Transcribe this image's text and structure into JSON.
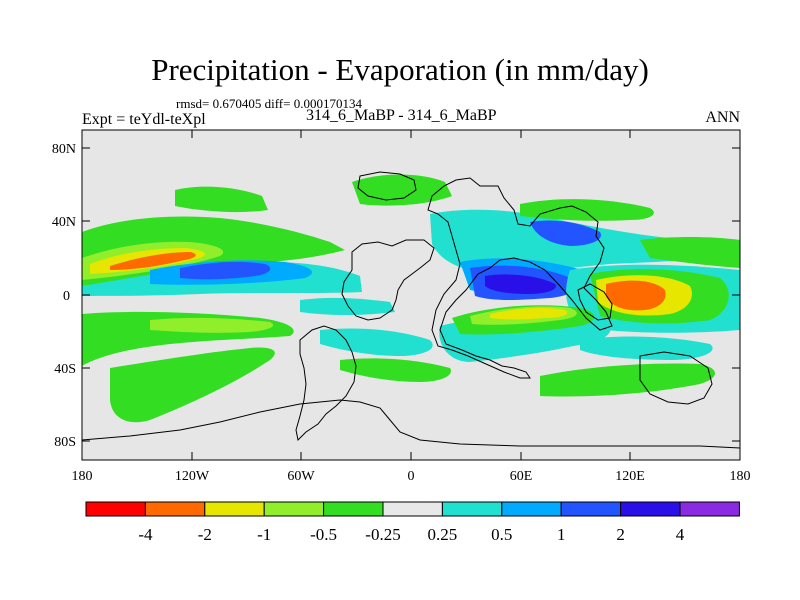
{
  "header": {
    "title": "Precipitation - Evaporation (in mm/day)",
    "stats": "rmsd= 0.670405 diff= 0.000170134",
    "experiment": "Expt = teYdl-teXpl",
    "case": "314_6_MaBP - 314_6_MaBP",
    "season": "ANN"
  },
  "axes": {
    "lat_ticks": [
      "80N",
      "40N",
      "0",
      "40S",
      "80S"
    ],
    "lon_ticks": [
      "180",
      "120W",
      "60W",
      "0",
      "60E",
      "120E",
      "180"
    ]
  },
  "colorbar": {
    "labels": [
      "-4",
      "-2",
      "-1",
      "-0.5",
      "-0.25",
      "0.25",
      "0.5",
      "1",
      "2",
      "4"
    ],
    "colors": [
      "#ff0000",
      "#ff6a00",
      "#e6e600",
      "#90ee2a",
      "#33dd22",
      "#e8e8e8",
      "#22e0d0",
      "#00aaff",
      "#2255ff",
      "#2a10e8",
      "#8a2be2"
    ]
  },
  "map": {
    "background": "#e6e6e6",
    "lon_range": [
      -180,
      180
    ],
    "lat_range": [
      -90,
      90
    ]
  }
}
